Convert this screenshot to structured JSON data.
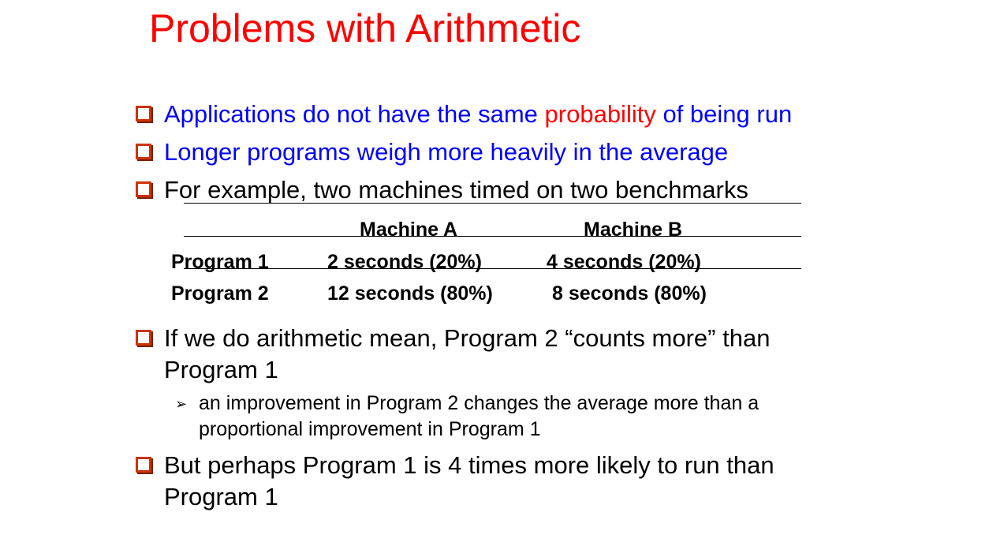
{
  "title": "Problems with Arithmetic",
  "bullets": [
    {
      "pre": "Applications do not have the same ",
      "highlight": "probability",
      "post": " of being run"
    },
    {
      "text": "Longer programs weigh more heavily in the average"
    },
    {
      "text": "For example, two machines timed on two benchmarks"
    },
    {
      "line1": "If we do arithmetic mean, Program 2 “counts more” than",
      "line2": "Program 1"
    },
    {
      "line1": "But perhaps Program 1 is 4 times more likely to run than",
      "line2": "Program 1"
    }
  ],
  "table": {
    "headers": [
      "Machine A",
      "Machine B"
    ],
    "rows": [
      {
        "program": "Program 1",
        "a": "2 seconds (20%)",
        "b": "4 seconds (20%)"
      },
      {
        "program": "Program 2",
        "a": "12 seconds (80%)",
        "b": "8 seconds (80%)"
      }
    ]
  },
  "sub_bullet": {
    "marker": "➢",
    "line1": "an improvement in Program 2 changes the average more than a",
    "line2": "proportional improvement in Program 1"
  },
  "colors": {
    "title": "#ff0000",
    "primary_text": "#0000ff",
    "highlight": "#ff0000",
    "bullet_box": "#cc3300"
  }
}
